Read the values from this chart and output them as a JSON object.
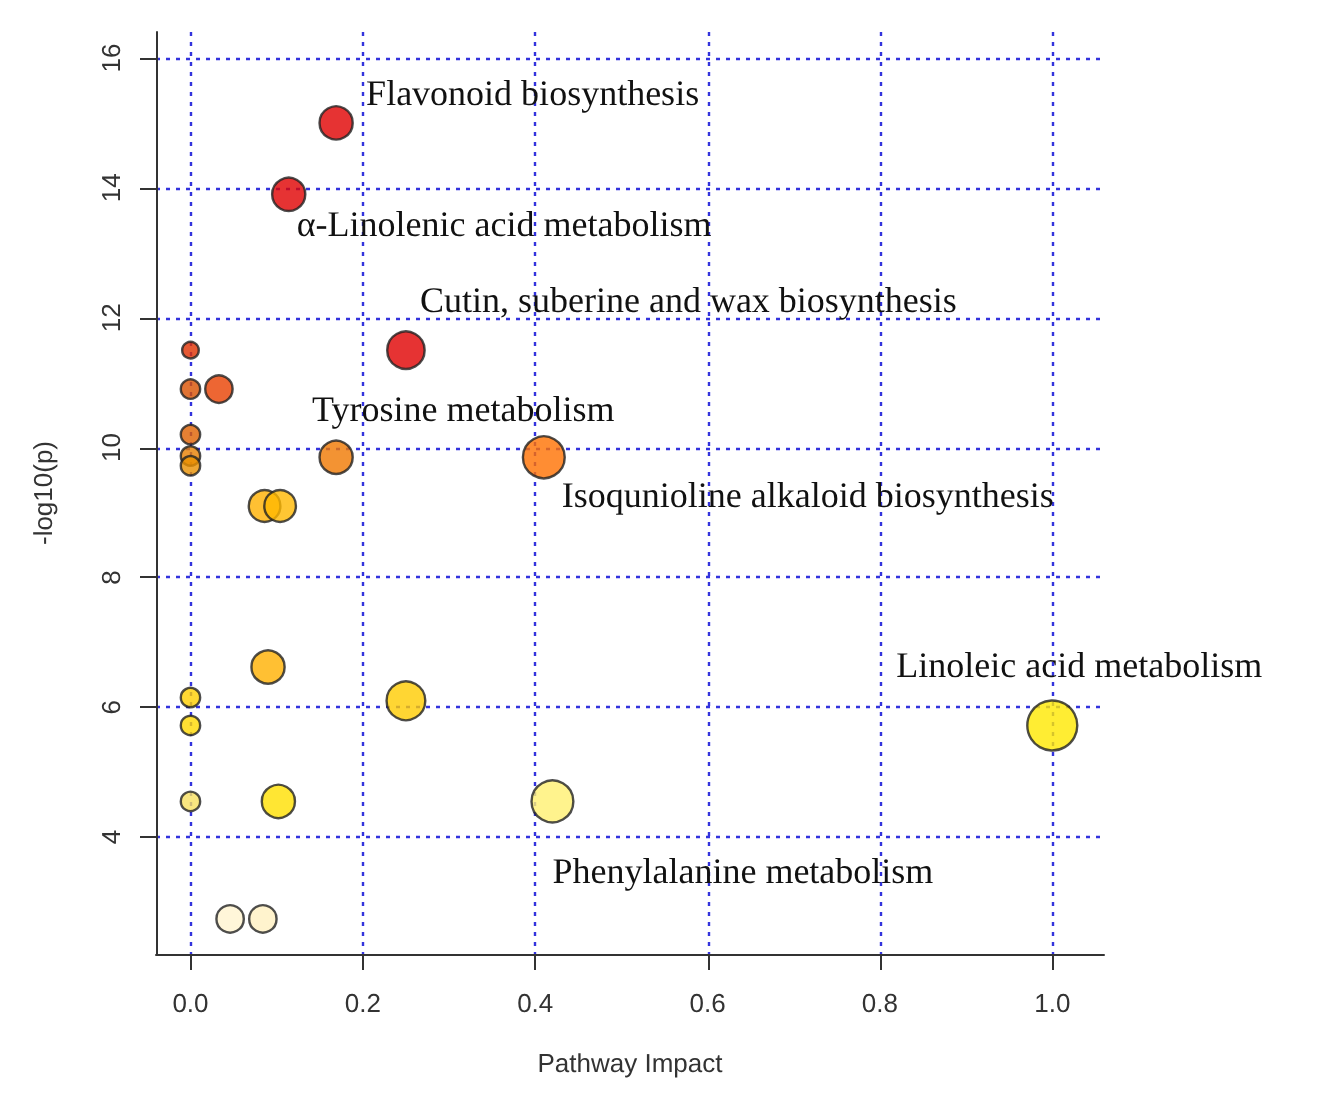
{
  "chart_data": {
    "type": "bubble",
    "xlabel": "Pathway Impact",
    "ylabel": "-log10(p)",
    "x": [
      0.169,
      0.114,
      0.25,
      0,
      0,
      0.033,
      0,
      0,
      0,
      0.169,
      0.41,
      0.086,
      0.104,
      0.09,
      0.25,
      0,
      0,
      0,
      0.102,
      0.42,
      1.0,
      0.046,
      0.084
    ],
    "values": [
      15.0,
      13.9,
      11.5,
      11.5,
      10.9,
      10.9,
      10.2,
      9.87,
      9.72,
      9.85,
      9.85,
      9.1,
      9.1,
      6.62,
      6.1,
      6.15,
      5.72,
      4.55,
      4.55,
      4.55,
      5.72,
      2.74,
      2.74
    ],
    "sizes": [
      0.44,
      0.44,
      0.56,
      0.11,
      0.15,
      0.3,
      0.15,
      0.15,
      0.15,
      0.44,
      0.7,
      0.4,
      0.4,
      0.44,
      0.6,
      0.15,
      0.15,
      0.15,
      0.44,
      0.7,
      1,
      0.3,
      0.3
    ],
    "colors": [
      "#e00000",
      "#e00000",
      "#e00000",
      "#e03000",
      "#d85000",
      "#e84000",
      "#e06000",
      "#e88000",
      "#e89000",
      "#f07800",
      "#ff7000",
      "#ffb000",
      "#ffb800",
      "#ffb000",
      "#ffcc00",
      "#ffd000",
      "#ffd800",
      "#f8e060",
      "#ffe000",
      "#fff070",
      "#ffe800",
      "#fff4d0",
      "#fff0c0"
    ],
    "xlim": [
      -0.04,
      1.06
    ],
    "ylim": [
      2.2,
      16.4
    ],
    "xticks": [
      {
        "value": 0,
        "label": "0.0"
      },
      0.2,
      0.4,
      0.6,
      0.8,
      {
        "value": 1,
        "label": "1.0"
      }
    ],
    "yticks": [
      4,
      6,
      8,
      10,
      12,
      14,
      16
    ],
    "grid": true,
    "marker": "circle",
    "annotations": [
      {
        "text": "Flavonoid biosynthesis",
        "x": 0.169,
        "y": 15.0
      },
      {
        "text": "α-Linolenic acid metabolism",
        "x": 0.114,
        "y": 13.9
      },
      {
        "text": "Cutin, suberine and wax biosynthesis",
        "x": 0.25,
        "y": 11.5
      },
      {
        "text": "Tyrosine metabolism",
        "x": 0.169,
        "y": 9.85
      },
      {
        "text": "Isoqunioline alkaloid biosynthesis",
        "x": 0.41,
        "y": 9.85
      },
      {
        "text": "Linoleic acid metabolism",
        "x": 1.0,
        "y": 5.72
      },
      {
        "text": "Phenylalanine metabolism",
        "x": 0.42,
        "y": 4.55
      }
    ]
  }
}
